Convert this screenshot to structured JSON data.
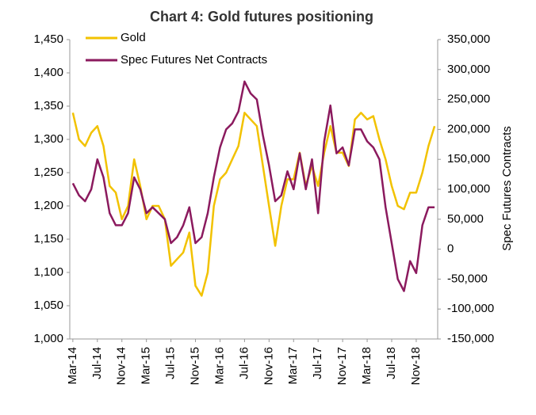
{
  "chart_data": {
    "type": "line",
    "title": "Chart 4: Gold futures positioning",
    "y2label": "Spec Futures Contracts",
    "categories": [
      "Mar-14",
      null,
      null,
      null,
      "Jul-14",
      null,
      null,
      null,
      "Nov-14",
      null,
      null,
      null,
      "Mar-15",
      null,
      null,
      null,
      "Jul-15",
      null,
      null,
      null,
      "Nov-15",
      null,
      null,
      null,
      "Mar-16",
      null,
      null,
      null,
      "Jul-16",
      null,
      null,
      null,
      "Nov-16",
      null,
      null,
      null,
      "Mar-17",
      null,
      null,
      null,
      "Jul-17",
      null,
      null,
      null,
      "Nov-17",
      null,
      null,
      null,
      "Mar-18",
      null,
      null,
      null,
      "Jul-18",
      null,
      null,
      null,
      "Nov-18",
      null,
      null,
      null
    ],
    "series": [
      {
        "name": "Gold",
        "color": "#f2c200",
        "axis": "y",
        "values": [
          1340,
          1300,
          1290,
          1310,
          1320,
          1290,
          1230,
          1220,
          1180,
          1200,
          1270,
          1230,
          1180,
          1200,
          1200,
          1180,
          1110,
          1120,
          1130,
          1160,
          1080,
          1065,
          1100,
          1200,
          1240,
          1250,
          1270,
          1290,
          1340,
          1330,
          1320,
          1260,
          1200,
          1140,
          1200,
          1240,
          1240,
          1280,
          1230,
          1260,
          1230,
          1280,
          1320,
          1280,
          1280,
          1260,
          1330,
          1340,
          1330,
          1335,
          1300,
          1270,
          1230,
          1200,
          1195,
          1220,
          1220,
          1250,
          1290,
          1320
        ]
      },
      {
        "name": "Spec Futures Net Contracts",
        "color": "#8b1a5e",
        "axis": "y2",
        "values": [
          110000,
          90000,
          80000,
          100000,
          150000,
          120000,
          60000,
          40000,
          40000,
          60000,
          120000,
          100000,
          60000,
          70000,
          60000,
          50000,
          10000,
          20000,
          40000,
          70000,
          10000,
          20000,
          60000,
          120000,
          170000,
          200000,
          210000,
          230000,
          280000,
          260000,
          250000,
          190000,
          140000,
          80000,
          90000,
          130000,
          100000,
          160000,
          100000,
          150000,
          60000,
          180000,
          240000,
          160000,
          170000,
          140000,
          200000,
          200000,
          180000,
          170000,
          150000,
          70000,
          10000,
          -50000,
          -70000,
          -20000,
          -40000,
          40000,
          70000,
          70000
        ]
      }
    ],
    "ylim": [
      1000,
      1450
    ],
    "yticks": [
      {
        "value": 1000,
        "label": "1,000"
      },
      {
        "value": 1050,
        "label": "1,050"
      },
      {
        "value": 1100,
        "label": "1,100"
      },
      {
        "value": 1150,
        "label": "1,150"
      },
      {
        "value": 1200,
        "label": "1,200"
      },
      {
        "value": 1250,
        "label": "1,250"
      },
      {
        "value": 1300,
        "label": "1,300"
      },
      {
        "value": 1350,
        "label": "1,350"
      },
      {
        "value": 1400,
        "label": "1,400"
      },
      {
        "value": 1450,
        "label": "1,450"
      }
    ],
    "y2lim": [
      -150000,
      350000
    ],
    "y2ticks": [
      {
        "value": -150000,
        "label": "-150,000"
      },
      {
        "value": -100000,
        "label": "-100,000"
      },
      {
        "value": -50000,
        "label": "-50,000"
      },
      0,
      {
        "value": 50000,
        "label": "50,000"
      },
      {
        "value": 100000,
        "label": "100,000"
      },
      {
        "value": 150000,
        "label": "150,000"
      },
      {
        "value": 200000,
        "label": "200,000"
      },
      {
        "value": 250000,
        "label": "250,000"
      },
      {
        "value": 300000,
        "label": "300,000"
      },
      {
        "value": 350000,
        "label": "350,000"
      }
    ]
  }
}
